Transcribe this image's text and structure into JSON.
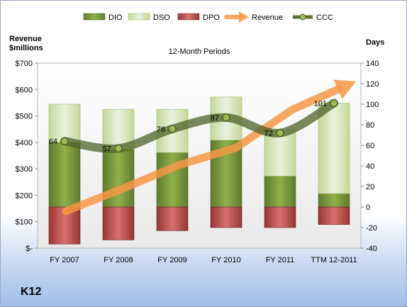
{
  "company": "K12",
  "chart_data": {
    "type": "bar",
    "title": "12-Month Periods",
    "left_axis_title": [
      "Revenue",
      "$millions"
    ],
    "right_axis_title": "Days",
    "categories": [
      "FY 2007",
      "FY 2008",
      "FY 2009",
      "FY 2010",
      "FY 2011",
      "TTM 12-2011"
    ],
    "left_ticks": [
      "$-",
      "$100",
      "$200",
      "$300",
      "$400",
      "$500",
      "$600",
      "$700"
    ],
    "right_ticks": [
      "-40",
      "-20",
      "0",
      "20",
      "40",
      "60",
      "80",
      "100",
      "120",
      "140"
    ],
    "ylim_left": [
      0,
      700
    ],
    "ylim_right": [
      -40,
      140
    ],
    "grid": false,
    "legend_position": "top",
    "series": [
      {
        "name": "DIO",
        "kind": "stacked-bar",
        "color": "#77933c",
        "values": [
          63,
          56,
          53,
          65,
          30,
          13
        ]
      },
      {
        "name": "DSO",
        "kind": "stacked-bar",
        "color": "#d7e4bd",
        "values": [
          37,
          39,
          42,
          42,
          45,
          88
        ]
      },
      {
        "name": "DPO",
        "kind": "stacked-bar-negative",
        "color": "#c0504d",
        "values": [
          -36,
          -32,
          -23,
          -20,
          -20,
          -17
        ]
      },
      {
        "name": "Revenue",
        "kind": "line-arrow",
        "axis": "left",
        "color": "#f79646",
        "values": [
          140,
          225,
          315,
          380,
          525,
          620
        ]
      },
      {
        "name": "CCC",
        "kind": "line",
        "axis": "right",
        "color": "#4f6228",
        "values": [
          64,
          57,
          76,
          87,
          72,
          101
        ]
      }
    ],
    "ccc_labels": [
      "64",
      "57",
      "76",
      "87",
      "72",
      "101"
    ]
  }
}
